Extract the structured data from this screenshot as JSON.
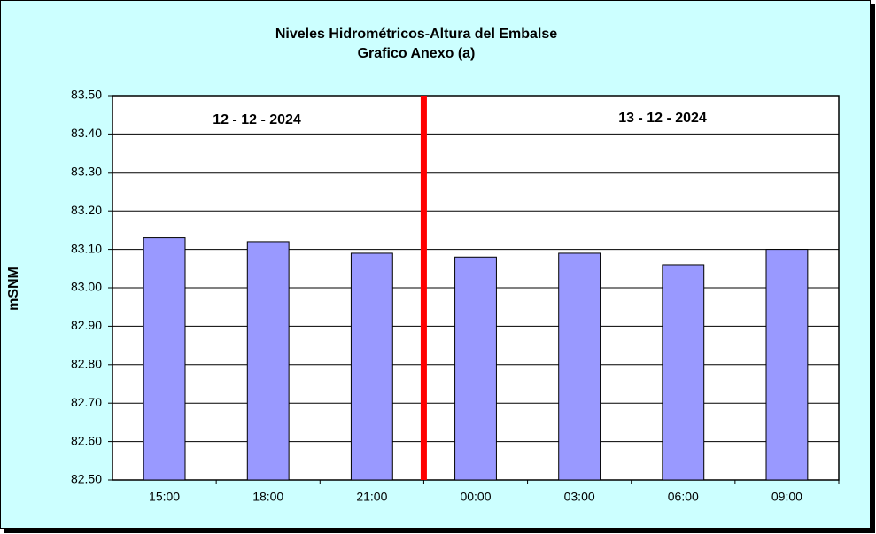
{
  "chart_data": {
    "type": "bar",
    "title": "Niveles Hidrométricos-Altura del Embalse",
    "subtitle": "Grafico Anexo (a)",
    "y_label": "mSNM",
    "annotations": [
      "12 - 12 - 2024",
      "13 - 12 - 2024"
    ],
    "categories": [
      "15:00",
      "18:00",
      "21:00",
      "00:00",
      "03:00",
      "06:00",
      "09:00"
    ],
    "values": [
      83.13,
      83.12,
      83.09,
      83.08,
      83.09,
      83.06,
      83.1
    ],
    "color": "#9999ff",
    "ylim": [
      82.5,
      83.5
    ],
    "yticks": [
      {
        "value": 82.5,
        "label": "82.50"
      },
      {
        "value": 82.6,
        "label": "82.60"
      },
      {
        "value": 82.7,
        "label": "82.70"
      },
      {
        "value": 82.8,
        "label": "82.80"
      },
      {
        "value": 82.9,
        "label": "82.90"
      },
      {
        "value": 83.0,
        "label": "83.00"
      },
      {
        "value": 83.1,
        "label": "83.10"
      },
      {
        "value": 83.2,
        "label": "83.20"
      },
      {
        "value": 83.3,
        "label": "83.30"
      },
      {
        "value": 83.4,
        "label": "83.40"
      },
      {
        "value": 83.5,
        "label": "83.50"
      }
    ],
    "grid": true
  }
}
